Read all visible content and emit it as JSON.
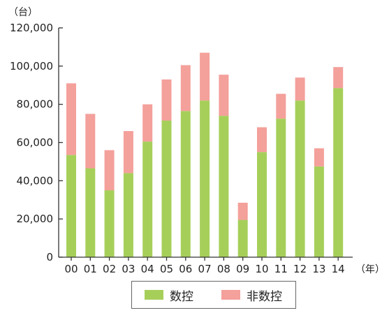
{
  "chart_data": {
    "type": "bar",
    "stacked": true,
    "title": "",
    "xlabel": "",
    "ylabel": "",
    "y_unit": "（台）",
    "x_unit": "（年）",
    "ylim": [
      0,
      120000
    ],
    "yticks": [
      0,
      20000,
      40000,
      60000,
      80000,
      100000,
      120000
    ],
    "ytick_labels": [
      "0",
      "20,000",
      "40,000",
      "60,000",
      "80,000",
      "100,000",
      "120,000"
    ],
    "categories": [
      "00",
      "01",
      "02",
      "03",
      "04",
      "05",
      "06",
      "07",
      "08",
      "09",
      "10",
      "11",
      "12",
      "13",
      "14"
    ],
    "series": [
      {
        "name": "数控",
        "color": "#a6cf5a",
        "values": [
          53500,
          46500,
          35000,
          44000,
          60500,
          71500,
          76500,
          82000,
          74000,
          19500,
          55000,
          72500,
          82000,
          47500,
          88500
        ]
      },
      {
        "name": "非数控",
        "color": "#f4a09b",
        "values": [
          37500,
          28500,
          21000,
          22000,
          19500,
          21500,
          24000,
          25000,
          21500,
          9000,
          13000,
          13000,
          12000,
          9500,
          11000
        ]
      }
    ],
    "grid": false,
    "legend": "bottom-center"
  }
}
